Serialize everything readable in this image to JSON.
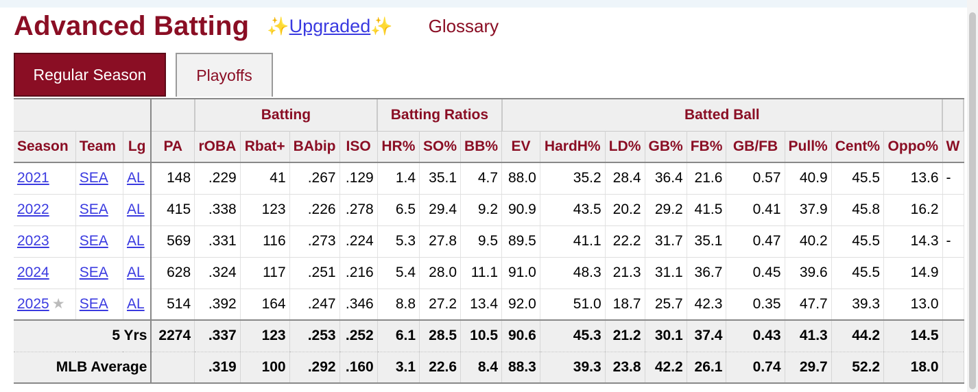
{
  "header": {
    "title": "Advanced Batting",
    "sparkle": "✨",
    "upgraded_label": "Upgraded",
    "glossary_label": "Glossary"
  },
  "tabs": [
    {
      "label": "Regular Season",
      "active": true
    },
    {
      "label": "Playoffs",
      "active": false
    }
  ],
  "over_headers": {
    "batting": "Batting",
    "batting_ratios": "Batting Ratios",
    "batted_ball": "Batted Ball"
  },
  "columns": [
    "Season",
    "Team",
    "Lg",
    "PA",
    "rOBA",
    "Rbat+",
    "BAbip",
    "ISO",
    "HR%",
    "SO%",
    "BB%",
    "EV",
    "HardH%",
    "LD%",
    "GB%",
    "FB%",
    "GB/FB",
    "Pull%",
    "Cent%",
    "Oppo%",
    "W"
  ],
  "rows": [
    {
      "season": "2021",
      "team": "SEA",
      "lg": "AL",
      "vals": [
        "148",
        ".229",
        "41",
        ".267",
        ".129",
        "1.4",
        "35.1",
        "4.7",
        "88.0",
        "35.2",
        "28.4",
        "36.4",
        "21.6",
        "0.57",
        "40.9",
        "45.5",
        "13.6",
        "-"
      ]
    },
    {
      "season": "2022",
      "team": "SEA",
      "lg": "AL",
      "vals": [
        "415",
        ".338",
        "123",
        ".226",
        ".278",
        "6.5",
        "29.4",
        "9.2",
        "90.9",
        "43.5",
        "20.2",
        "29.2",
        "41.5",
        "0.41",
        "37.9",
        "45.8",
        "16.2",
        ""
      ]
    },
    {
      "season": "2023",
      "team": "SEA",
      "lg": "AL",
      "vals": [
        "569",
        ".331",
        "116",
        ".273",
        ".224",
        "5.3",
        "27.8",
        "9.5",
        "89.5",
        "41.1",
        "22.2",
        "31.7",
        "35.1",
        "0.47",
        "40.2",
        "45.5",
        "14.3",
        "-"
      ]
    },
    {
      "season": "2024",
      "team": "SEA",
      "lg": "AL",
      "vals": [
        "628",
        ".324",
        "117",
        ".251",
        ".216",
        "5.4",
        "28.0",
        "11.1",
        "91.0",
        "48.3",
        "21.3",
        "31.1",
        "36.7",
        "0.45",
        "39.6",
        "45.5",
        "14.9",
        ""
      ]
    },
    {
      "season": "2025",
      "star": "★",
      "team": "SEA",
      "lg": "AL",
      "vals": [
        "514",
        ".392",
        "164",
        ".247",
        ".346",
        "8.8",
        "27.2",
        "13.4",
        "92.0",
        "51.0",
        "18.7",
        "25.7",
        "42.3",
        "0.35",
        "47.7",
        "39.3",
        "13.0",
        ""
      ]
    }
  ],
  "summary": [
    {
      "label": "5 Yrs",
      "vals": [
        "2274",
        ".337",
        "123",
        ".253",
        ".252",
        "6.1",
        "28.5",
        "10.5",
        "90.6",
        "45.3",
        "21.2",
        "30.1",
        "37.4",
        "0.43",
        "41.3",
        "44.2",
        "14.5",
        ""
      ]
    },
    {
      "label": "MLB Average",
      "vals": [
        "",
        ".319",
        "100",
        ".292",
        ".160",
        "3.1",
        "22.6",
        "8.4",
        "88.3",
        "39.3",
        "23.8",
        "42.2",
        "26.1",
        "0.74",
        "29.7",
        "52.2",
        "18.0",
        ""
      ]
    }
  ]
}
